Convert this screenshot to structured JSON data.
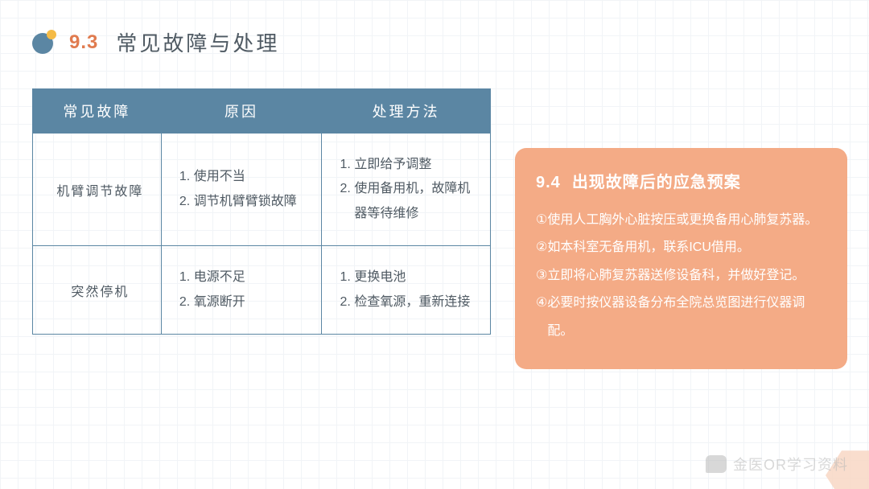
{
  "colors": {
    "accent_blue": "#5b86a3",
    "accent_orange": "#f4ab86",
    "bullet_big": "#5b86a3",
    "bullet_small": "#f5bb46",
    "title_no": "#e07b4f",
    "title_text": "#4f5a63",
    "table_border": "#5b86a3",
    "table_header_bg": "#5b86a3",
    "table_text": "#4f5a63",
    "panel_bg": "#f4ab86",
    "hexagon": "#f8d7c4",
    "watermark": "#b9b9b9",
    "grid": "#f1f4f7"
  },
  "header": {
    "number": "9.3",
    "title": "常见故障与处理"
  },
  "table": {
    "col_widths": [
      "160px",
      "200px",
      "210px"
    ],
    "columns": [
      "常见故障",
      "原因",
      "处理方法"
    ],
    "rows": [
      {
        "fault": "机臂调节故障",
        "reasons": [
          "使用不当",
          "调节机臂臂锁故障"
        ],
        "actions": [
          "立即给予调整",
          "使用备用机，故障机器等待维修"
        ]
      },
      {
        "fault": "突然停机",
        "reasons": [
          "电源不足",
          "氧源断开"
        ],
        "actions": [
          "更换电池",
          "检查氧源，重新连接"
        ]
      }
    ]
  },
  "panel": {
    "number": "9.4",
    "title": "出现故障后的应急预案",
    "markers": [
      "①",
      "②",
      "③",
      "④"
    ],
    "items": [
      "使用人工胸外心脏按压或更换备用心肺复苏器。",
      "如本科室无备用机，联系ICU借用。",
      "立即将心肺复苏器送修设备科，并做好登记。",
      "必要时按仪器设备分布全院总览图进行仪器调配。"
    ]
  },
  "watermark": "金医OR学习资料"
}
